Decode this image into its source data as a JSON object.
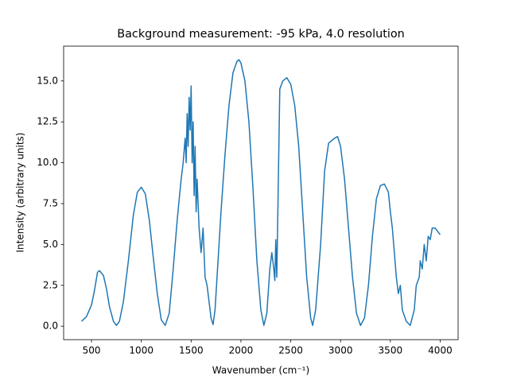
{
  "chart_data": {
    "type": "line",
    "title": "Background measurement: -95 kPa, 4.0 resolution",
    "x_label": "Wavenumber (cm⁻¹)",
    "y_label": "Intensity (arbitrary units)",
    "color": "#1f77b4",
    "x": [
      400,
      450,
      500,
      530,
      560,
      580,
      620,
      650,
      680,
      720,
      750,
      780,
      820,
      870,
      920,
      960,
      1000,
      1040,
      1080,
      1120,
      1160,
      1200,
      1240,
      1280,
      1320,
      1360,
      1400,
      1420,
      1440,
      1450,
      1460,
      1470,
      1480,
      1490,
      1500,
      1510,
      1520,
      1530,
      1540,
      1550,
      1560,
      1580,
      1600,
      1620,
      1640,
      1660,
      1680,
      1700,
      1720,
      1740,
      1760,
      1800,
      1840,
      1880,
      1920,
      1960,
      1980,
      2000,
      2040,
      2080,
      2120,
      2160,
      2200,
      2230,
      2260,
      2290,
      2310,
      2330,
      2340,
      2350,
      2360,
      2390,
      2420,
      2460,
      2500,
      2540,
      2580,
      2620,
      2660,
      2700,
      2720,
      2750,
      2800,
      2840,
      2880,
      2940,
      2970,
      3000,
      3040,
      3080,
      3120,
      3160,
      3200,
      3240,
      3280,
      3320,
      3360,
      3400,
      3440,
      3480,
      3500,
      3520,
      3540,
      3560,
      3580,
      3600,
      3620,
      3660,
      3700,
      3740,
      3760,
      3790,
      3800,
      3820,
      3840,
      3860,
      3880,
      3900,
      3920,
      3950,
      4000
    ],
    "values": [
      0.3,
      0.6,
      1.3,
      2.2,
      3.3,
      3.4,
      3.1,
      2.3,
      1.2,
      0.3,
      0.05,
      0.3,
      1.5,
      4,
      6.8,
      8.2,
      8.5,
      8.1,
      6.5,
      4.2,
      2,
      0.4,
      0.05,
      0.8,
      3.5,
      6.5,
      9,
      10,
      11.5,
      10,
      13,
      11,
      14,
      12,
      14.7,
      10,
      12.5,
      8,
      11,
      7,
      9,
      6,
      4.5,
      6,
      3,
      2.5,
      1.5,
      0.5,
      0.1,
      1,
      3,
      7,
      10.5,
      13.5,
      15.5,
      16.2,
      16.3,
      16.1,
      15,
      12.5,
      8.5,
      4,
      1,
      0.05,
      0.8,
      3.5,
      4.5,
      3.5,
      2.8,
      5.3,
      3,
      14.5,
      15,
      15.2,
      14.8,
      13.5,
      11,
      7,
      3,
      0.5,
      0.05,
      1,
      5,
      9.5,
      11.2,
      11.5,
      11.6,
      11,
      9,
      6,
      3,
      0.8,
      0.05,
      0.5,
      2.5,
      5.5,
      7.8,
      8.6,
      8.7,
      8.2,
      7,
      6,
      4.5,
      3,
      2,
      2.5,
      1,
      0.3,
      0.05,
      1,
      2.5,
      3,
      4,
      3.5,
      5,
      4,
      5.5,
      5.3,
      6,
      6,
      5.6
    ],
    "xlim": [
      220,
      4180
    ],
    "ylim": [
      -0.82,
      17.13
    ],
    "xticks": [
      500,
      1000,
      1500,
      2000,
      2500,
      3000,
      3500,
      4000
    ],
    "yticks": [
      {
        "value": 0,
        "label": "0.0"
      },
      {
        "value": 2.5,
        "label": "2.5"
      },
      {
        "value": 5,
        "label": "5.0"
      },
      {
        "value": 7.5,
        "label": "7.5"
      },
      {
        "value": 10,
        "label": "10.0"
      },
      {
        "value": 12.5,
        "label": "12.5"
      },
      {
        "value": 15,
        "label": "15.0"
      }
    ]
  }
}
